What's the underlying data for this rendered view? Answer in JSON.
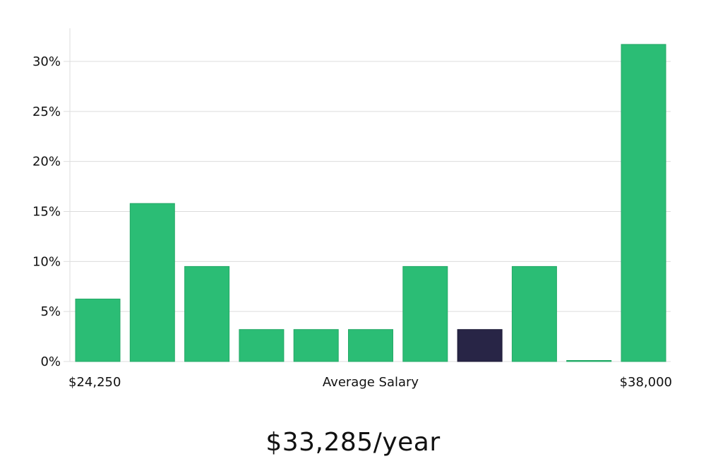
{
  "chart_data": {
    "type": "bar",
    "categories": [
      "",
      "",
      "",
      "",
      "",
      "",
      "",
      "",
      "",
      "",
      ""
    ],
    "values": [
      6.25,
      15.8,
      9.5,
      3.2,
      3.2,
      3.2,
      9.5,
      3.2,
      9.5,
      0.0,
      31.7
    ],
    "highlight_index": 7,
    "bar_color": "#2bbd75",
    "highlight_color": "#282546",
    "y_ticks": [
      {
        "value": 0,
        "label": "0%"
      },
      {
        "value": 5,
        "label": "5%"
      },
      {
        "value": 10,
        "label": "10%"
      },
      {
        "value": 15,
        "label": "15%"
      },
      {
        "value": 20,
        "label": "20%"
      },
      {
        "value": 25,
        "label": "25%"
      },
      {
        "value": 30,
        "label": "30%"
      }
    ],
    "ylim": [
      0,
      33
    ],
    "grid": true,
    "x_min_label": "$24,250",
    "x_max_label": "$38,000",
    "xlabel": "Average Salary"
  },
  "salary_text": "$33,285/year"
}
